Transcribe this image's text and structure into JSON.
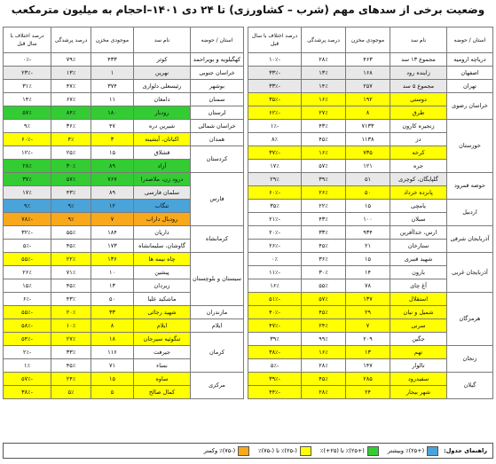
{
  "title": "وضعیت برخی از سدهای مهم (شرب – کشاورزی) تا ۲۴ دی ۱۴۰۱–احجام به میلیون مترمکعب",
  "headers": [
    "استان / حوضه",
    "نام سد",
    "موجودی مخزن",
    "درصد پرشدگی",
    "درصد اختلاف با سال قبل"
  ],
  "right_table": {
    "groups": [
      {
        "province": "دریاچه ارومیه",
        "rows": [
          {
            "dam": "مجموع ۱۳ سد",
            "volume": "۴۶۳",
            "fill": "۲۸٪",
            "diff": "-۱۰٪",
            "color": "white"
          }
        ]
      },
      {
        "province": "اصفهان",
        "rows": [
          {
            "dam": "زاینده رود",
            "volume": "۱۶۸",
            "fill": "۱۳٪",
            "diff": "-۳۳٪",
            "color": "grey"
          }
        ]
      },
      {
        "province": "تهران",
        "rows": [
          {
            "dam": "مجموع ۵ سد",
            "volume": "۲۵۷",
            "fill": "۱۴٪",
            "diff": "-۳۳٪",
            "color": "grey"
          }
        ]
      },
      {
        "province": "خراسان رضوی",
        "rows": [
          {
            "dam": "دوستی",
            "volume": "۱۹۲",
            "fill": "۱۶٪",
            "diff": "-۳۵٪",
            "color": "yellow"
          },
          {
            "dam": "طرق",
            "volume": "۸",
            "fill": "۲۷٪",
            "diff": "-۶۲٪",
            "color": "yellow"
          }
        ]
      },
      {
        "province": "خوزستان",
        "rows": [
          {
            "dam": "زنجیره کارون",
            "volume": "۷۱۳۳",
            "fill": "۴۳٪",
            "diff": "-۱٪",
            "color": "white"
          },
          {
            "dam": "دز",
            "volume": "۱۱۳۸",
            "fill": "۴۵٪",
            "diff": "۸٪",
            "color": "white"
          },
          {
            "dam": "کرخه",
            "volume": "۷۳۵",
            "fill": "۱۶٪",
            "diff": "-۳۷٪",
            "color": "yellow"
          },
          {
            "dam": "جره",
            "volume": "۱۲۱",
            "fill": "۵۷٪",
            "diff": "۱۷٪",
            "color": "white"
          }
        ]
      },
      {
        "province": "حوضه قمرود",
        "rows": [
          {
            "dam": "گلپایگان، کوچری",
            "volume": "۵۱",
            "fill": "۳۹٪",
            "diff": "۲۹٪",
            "color": "grey"
          },
          {
            "dam": "پانزده خرداد",
            "volume": "۵۰",
            "fill": "۲۶٪",
            "diff": "-۶۰٪",
            "color": "yellow"
          }
        ]
      },
      {
        "province": "اردبیل",
        "rows": [
          {
            "dam": "یامچی",
            "volume": "۱۵",
            "fill": "۲۲٪",
            "diff": "۳۵٪",
            "color": "white"
          },
          {
            "dam": "سبلان",
            "volume": "۱۰۰",
            "fill": "۴۳٪",
            "diff": "-۲۱٪",
            "color": "white"
          }
        ]
      },
      {
        "province": "آذربایجان شرقی",
        "rows": [
          {
            "dam": "ارس، خداآفرین",
            "volume": "۹۳۴",
            "fill": "۳۳٪",
            "diff": "-۲۰٪",
            "color": "white"
          },
          {
            "dam": "ستارخان",
            "volume": "۲۱",
            "fill": "۴۵٪",
            "diff": "-۲۶٪",
            "color": "white"
          }
        ]
      },
      {
        "province": "آذربایجان غربی",
        "rows": [
          {
            "dam": "شهید قنبری",
            "volume": "۱۵",
            "fill": "۳۶٪",
            "diff": "۰٪",
            "color": "white"
          },
          {
            "dam": "بارون",
            "volume": "۱۴",
            "fill": "۳۰٪",
            "diff": "-۱۱٪",
            "color": "white"
          },
          {
            "dam": "آغ چای",
            "volume": "۷۸",
            "fill": "۵۵٪",
            "diff": "۱۶٪",
            "color": "white"
          }
        ]
      },
      {
        "province": "هرمزگان",
        "rows": [
          {
            "dam": "استقلال",
            "volume": "۱۳۷",
            "fill": "۵۷٪",
            "diff": "-۵۱٪",
            "color": "yellow"
          },
          {
            "dam": "شمیل و نیان",
            "volume": "۲۹",
            "fill": "۴۵٪",
            "diff": "-۴۰٪",
            "color": "yellow"
          },
          {
            "dam": "سرنی",
            "volume": "۷",
            "fill": "۲۴٪",
            "diff": "-۴۷٪",
            "color": "yellow"
          },
          {
            "dam": "جگین",
            "volume": "۲۰۹",
            "fill": "۹۹٪",
            "diff": "۳۹٪",
            "color": "white"
          }
        ]
      },
      {
        "province": "زنجان",
        "rows": [
          {
            "dam": "تهم",
            "volume": "۱۳",
            "fill": "۱۶٪",
            "diff": "-۳۸٪",
            "color": "yellow"
          },
          {
            "dam": "تالوار",
            "volume": "۱۴۷",
            "fill": "۲۸٪",
            "diff": "-۵٪",
            "color": "white"
          }
        ]
      },
      {
        "province": "گیلان",
        "rows": [
          {
            "dam": "سفیدرود",
            "volume": "۲۸۵",
            "fill": "۴۵٪",
            "diff": "-۳۹٪",
            "color": "yellow"
          },
          {
            "dam": "شهر بیجار",
            "volume": "۲۴",
            "fill": "۲۸٪",
            "diff": "-۴۴٪",
            "color": "yellow"
          }
        ]
      }
    ]
  },
  "left_table": {
    "groups": [
      {
        "province": "کهگیلویه و بویراحمد",
        "rows": [
          {
            "dam": "کوثر",
            "volume": "۴۳۳",
            "fill": "۷۹٪",
            "diff": "-۰٪",
            "color": "white"
          }
        ]
      },
      {
        "province": "خراسان جنوبی",
        "rows": [
          {
            "dam": "نهرین",
            "volume": "۱",
            "fill": "۱۳٪",
            "diff": "-۲۳٪",
            "color": "grey"
          }
        ]
      },
      {
        "province": "بوشهر",
        "rows": [
          {
            "dam": "رئیسعلی دلواری",
            "volume": "۳۷۴",
            "fill": "۴۷٪",
            "diff": "۳۱٪",
            "color": "white"
          }
        ]
      },
      {
        "province": "سمنان",
        "rows": [
          {
            "dam": "دامغان",
            "volume": "۱۱",
            "fill": "۶۷٪",
            "diff": "۱۴٪",
            "color": "white"
          }
        ]
      },
      {
        "province": "لرستان",
        "rows": [
          {
            "dam": "رودبار",
            "volume": "۱۸۰",
            "fill": "۸۴٪",
            "diff": "۵۷٪",
            "color": "green"
          }
        ]
      },
      {
        "province": "خراسان شمالی",
        "rows": [
          {
            "dam": "شیرین دره",
            "volume": "۴۷",
            "fill": "۳۶٪",
            "diff": "۹٪",
            "color": "white"
          }
        ]
      },
      {
        "province": "همدان",
        "rows": [
          {
            "dam": "اکباتان، آبشینه",
            "volume": "۳",
            "fill": "۴٪",
            "diff": "-۶۰٪",
            "color": "yellow"
          }
        ]
      },
      {
        "province": "کردستان",
        "rows": [
          {
            "dam": "قشلاق",
            "volume": "۱۵",
            "fill": "۲۵٪",
            "diff": "-۱۲٪",
            "color": "white"
          },
          {
            "dam": "آزاد",
            "volume": "۸۹",
            "fill": "۳۰٪",
            "diff": "۲۸٪",
            "color": "green"
          }
        ]
      },
      {
        "province": "فارس",
        "rows": [
          {
            "dam": "درود زن، ملاصدرا",
            "volume": "۷۶۷",
            "fill": "۵۷٪",
            "diff": "۳۷٪",
            "color": "green"
          },
          {
            "dam": "سلمان فارسی",
            "volume": "۸۹",
            "fill": "۴۳٪",
            "diff": "۱۷٪",
            "color": "grey"
          },
          {
            "dam": "تنگاب",
            "volume": "۱۲",
            "fill": "۹٪",
            "diff": "۹٪",
            "color": "blue"
          },
          {
            "dam": "رودبال داراب",
            "volume": "۷",
            "fill": "۹٪",
            "diff": "-۷۸٪",
            "color": "orange"
          }
        ]
      },
      {
        "province": "کرمانشاه",
        "rows": [
          {
            "dam": "داریان",
            "volume": "۱۸۴",
            "fill": "۵۵٪",
            "diff": "-۳۲٪",
            "color": "white"
          },
          {
            "dam": "گاوشان، سلیمانشاه",
            "volume": "۱۷۳",
            "fill": "۴۵٪",
            "diff": "-۵٪",
            "color": "white"
          }
        ]
      },
      {
        "province": "سیستان و بلوچستان",
        "rows": [
          {
            "dam": "چاه نیمه ها",
            "volume": "۱۳۶",
            "fill": "۲۲٪",
            "diff": "-۵۵٪",
            "color": "yellow"
          },
          {
            "dam": "پیشین",
            "volume": "۱۰",
            "fill": "۷۱٪",
            "diff": "۲۶٪",
            "color": "white"
          },
          {
            "dam": "زیردان",
            "volume": "۱۳",
            "fill": "۴۵٪",
            "diff": "۱۵٪",
            "color": "white"
          },
          {
            "dam": "ماشکید علیا",
            "volume": "۵۰",
            "fill": "۴۳٪",
            "diff": "-۶٪",
            "color": "white"
          }
        ]
      },
      {
        "province": "مازندران",
        "rows": [
          {
            "dam": "شهید رجائی",
            "volume": "۳۳",
            "fill": "۲۰٪",
            "diff": "-۵۵٪",
            "color": "yellow"
          }
        ]
      },
      {
        "province": "ایلام",
        "rows": [
          {
            "dam": "ایلام",
            "volume": "۸",
            "fill": "۱۰٪",
            "diff": "-۵۸٪",
            "color": "yellow"
          }
        ]
      },
      {
        "province": "کرمان",
        "rows": [
          {
            "dam": "تنگوئیه سیرجان",
            "volume": "۱۸",
            "fill": "۲۷٪",
            "diff": "-۵۴٪",
            "color": "yellow"
          },
          {
            "dam": "جیرفت",
            "volume": "۱۱۶",
            "fill": "۳۳٪",
            "diff": "-۲٪",
            "color": "white"
          },
          {
            "dam": "نساء",
            "volume": "۷۱",
            "fill": "۴۵٪",
            "diff": "۱٪",
            "color": "white"
          }
        ]
      },
      {
        "province": "مرکزی",
        "rows": [
          {
            "dam": "ساوه",
            "volume": "۱۵",
            "fill": "۲۴٪",
            "diff": "-۵۷٪",
            "color": "yellow"
          },
          {
            "dam": "کمال صالح",
            "volume": "۵",
            "fill": "۵٪",
            "diff": "-۳۸٪",
            "color": "yellow"
          }
        ]
      }
    ]
  },
  "legend": {
    "title": "راهنمای جدول:",
    "items": [
      {
        "label": "(+۲۵)٪ وبیشتر",
        "color": "#4aa3d9"
      },
      {
        "label": "(+۲۵)٪ تا (۲۵+)٪",
        "color": "#33cc33"
      },
      {
        "label": "(-۲۵)٪ تا (-۷۵)٪",
        "color": "#ffff00"
      },
      {
        "label": "(-۷۵)٪ وکمتر",
        "color": "#f7a81b"
      }
    ]
  }
}
